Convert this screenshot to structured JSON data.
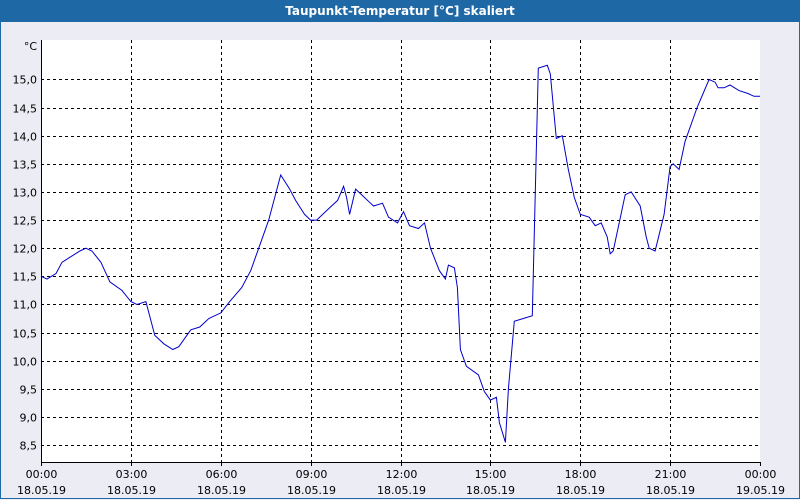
{
  "window": {
    "title": "Taupunkt-Temperatur [°C] skaliert"
  },
  "colors": {
    "title_bar": "#1f68a6",
    "background": "#ececf4",
    "plot_background": "#ffffff",
    "series_line": "#0000cc",
    "grid": "#000000"
  },
  "chart_data": {
    "type": "line",
    "title": "Taupunkt-Temperatur [°C] skaliert",
    "yunit": "°C",
    "ylim": [
      8.2,
      15.7
    ],
    "yticks": [
      "8,5",
      "9,0",
      "9,5",
      "10,0",
      "10,5",
      "11,0",
      "11,5",
      "12,0",
      "12,5",
      "13,0",
      "13,5",
      "14,0",
      "14,5",
      "15,0"
    ],
    "ytick_values": [
      8.5,
      9.0,
      9.5,
      10.0,
      10.5,
      11.0,
      11.5,
      12.0,
      12.5,
      13.0,
      13.5,
      14.0,
      14.5,
      15.0
    ],
    "xlim_hours": [
      0,
      24
    ],
    "xticks": [
      {
        "hour": 0,
        "time": "00:00",
        "date": "18.05.19"
      },
      {
        "hour": 3,
        "time": "03:00",
        "date": "18.05.19"
      },
      {
        "hour": 6,
        "time": "06:00",
        "date": "18.05.19"
      },
      {
        "hour": 9,
        "time": "09:00",
        "date": "18.05.19"
      },
      {
        "hour": 12,
        "time": "12:00",
        "date": "18.05.19"
      },
      {
        "hour": 15,
        "time": "15:00",
        "date": "18.05.19"
      },
      {
        "hour": 18,
        "time": "18:00",
        "date": "18.05.19"
      },
      {
        "hour": 21,
        "time": "21:00",
        "date": "18.05.19"
      },
      {
        "hour": 24,
        "time": "00:00",
        "date": "19.05.19"
      }
    ],
    "grid": true,
    "series": [
      {
        "x": [
          0,
          0.2,
          0.5,
          0.7,
          1.0,
          1.3,
          1.5,
          1.7,
          2.0,
          2.3,
          2.7,
          3.0,
          3.2,
          3.5,
          3.8,
          4.1,
          4.4,
          4.6,
          5.0,
          5.3,
          5.6,
          6.0,
          6.3,
          6.7,
          7.0,
          7.3,
          7.6,
          8.0,
          8.3,
          8.5,
          8.8,
          9.0,
          9.2,
          9.6,
          9.9,
          10.1,
          10.2,
          10.3,
          10.5,
          10.7,
          11.0,
          11.1,
          11.4,
          11.6,
          11.9,
          12.1,
          12.3,
          12.6,
          12.8,
          13.0,
          13.3,
          13.5,
          13.6,
          13.8,
          13.9,
          14.0,
          14.2,
          14.6,
          14.8,
          15.0,
          15.2,
          15.3,
          15.5,
          15.6,
          15.8,
          16.1,
          16.4,
          16.6,
          16.9,
          17.0,
          17.2,
          17.4,
          17.6,
          17.8,
          18.0,
          18.3,
          18.5,
          18.7,
          18.9,
          19.0,
          19.1,
          19.3,
          19.5,
          19.7,
          20.0,
          20.2,
          20.3,
          20.5,
          20.8,
          21.0,
          21.1,
          21.3,
          21.5,
          21.7,
          21.8,
          21.9,
          22.1,
          22.3,
          22.5,
          22.6,
          22.8,
          23.0,
          23.3,
          23.6,
          23.8,
          24.0
        ],
        "y": [
          11.5,
          11.45,
          11.55,
          11.75,
          11.85,
          11.95,
          12.0,
          11.95,
          11.75,
          11.4,
          11.25,
          11.05,
          11.0,
          11.05,
          10.45,
          10.3,
          10.2,
          10.25,
          10.55,
          10.6,
          10.75,
          10.85,
          11.05,
          11.3,
          11.6,
          12.05,
          12.5,
          13.3,
          13.05,
          12.85,
          12.6,
          12.5,
          12.5,
          12.7,
          12.85,
          13.1,
          12.9,
          12.6,
          13.05,
          12.95,
          12.8,
          12.75,
          12.8,
          12.55,
          12.45,
          12.65,
          12.4,
          12.35,
          12.45,
          12.0,
          11.6,
          11.45,
          11.7,
          11.65,
          11.3,
          10.2,
          9.9,
          9.75,
          9.45,
          9.3,
          9.35,
          8.9,
          8.55,
          9.5,
          10.7,
          10.75,
          10.8,
          15.2,
          15.25,
          15.1,
          13.95,
          14.0,
          13.4,
          12.9,
          12.6,
          12.55,
          12.4,
          12.45,
          12.2,
          11.9,
          11.95,
          12.45,
          12.95,
          13.0,
          12.75,
          12.2,
          12.0,
          11.95,
          12.6,
          13.45,
          13.5,
          13.4,
          13.9,
          14.2,
          14.35,
          14.5,
          14.75,
          15.0,
          14.95,
          14.85,
          14.85,
          14.9,
          14.8,
          14.75,
          14.7,
          14.7
        ]
      }
    ]
  }
}
